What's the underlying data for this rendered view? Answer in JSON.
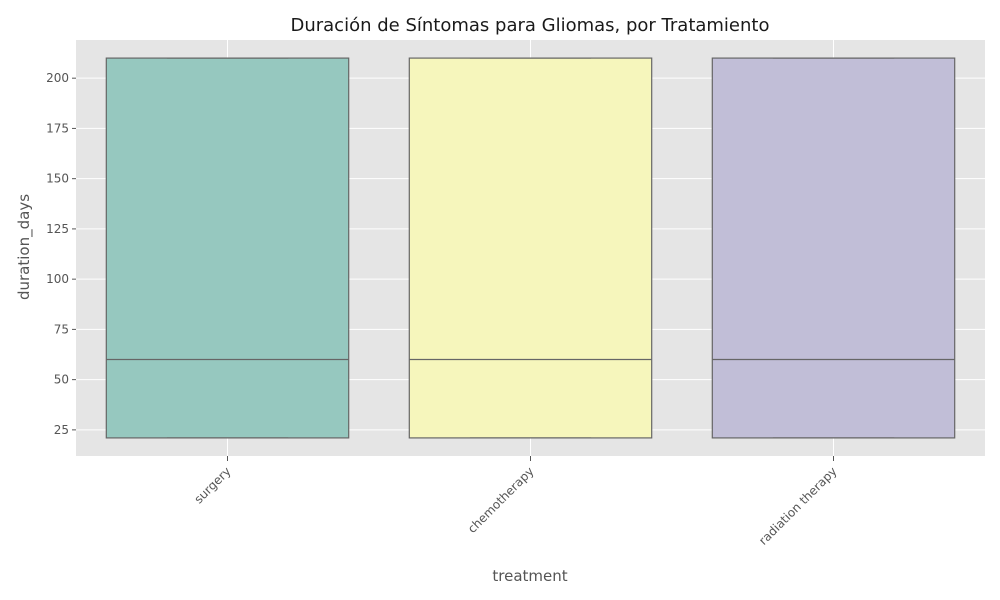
{
  "chart_data": {
    "type": "box",
    "title": "Duración de Síntomas para Gliomas, por Tratamiento",
    "xlabel": "treatment",
    "ylabel": "duration_days",
    "categories": [
      "surgery",
      "chemotherapy",
      "radiation therapy"
    ],
    "boxes": [
      {
        "category": "surgery",
        "min": 21,
        "q1": 21,
        "median": 60,
        "q3": 210,
        "max": 210,
        "color": "#96c8bf"
      },
      {
        "category": "chemotherapy",
        "min": 21,
        "q1": 21,
        "median": 60,
        "q3": 210,
        "max": 210,
        "color": "#f6f6bc"
      },
      {
        "category": "radiation therapy",
        "min": 21,
        "q1": 21,
        "median": 60,
        "q3": 210,
        "max": 210,
        "color": "#c1bed7"
      }
    ],
    "ylim": [
      12,
      219
    ],
    "yticks": [
      25,
      50,
      75,
      100,
      125,
      150,
      175,
      200
    ],
    "ytick_labels": [
      "25",
      "50",
      "75",
      "100",
      "125",
      "150",
      "175",
      "200"
    ],
    "grid": true,
    "background_color": "#e5e5e5",
    "grid_color": "#ffffff",
    "edge_color": "#666666"
  }
}
